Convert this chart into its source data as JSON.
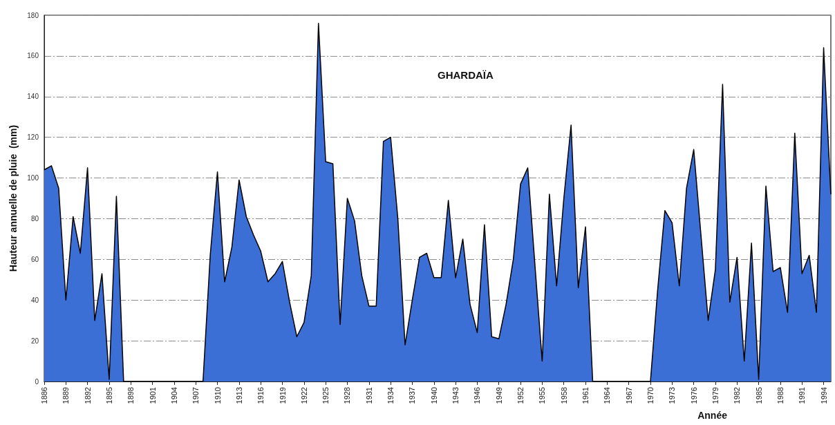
{
  "chart_data": {
    "type": "area",
    "title": "GHARDAÏA",
    "xlabel": "Année",
    "ylabel": "Hauteur annuelle de pluie  (mm)",
    "x": [
      1886,
      1887,
      1888,
      1889,
      1890,
      1891,
      1892,
      1893,
      1894,
      1895,
      1896,
      1897,
      1898,
      1899,
      1900,
      1901,
      1902,
      1903,
      1904,
      1905,
      1906,
      1907,
      1908,
      1909,
      1910,
      1911,
      1912,
      1913,
      1914,
      1915,
      1916,
      1917,
      1918,
      1919,
      1920,
      1921,
      1922,
      1923,
      1924,
      1925,
      1926,
      1927,
      1928,
      1929,
      1930,
      1931,
      1932,
      1933,
      1934,
      1935,
      1936,
      1937,
      1938,
      1939,
      1940,
      1941,
      1942,
      1943,
      1944,
      1945,
      1946,
      1947,
      1948,
      1949,
      1950,
      1951,
      1952,
      1953,
      1954,
      1955,
      1956,
      1957,
      1958,
      1959,
      1960,
      1961,
      1962,
      1963,
      1964,
      1965,
      1966,
      1967,
      1968,
      1969,
      1970,
      1971,
      1972,
      1973,
      1974,
      1975,
      1976,
      1977,
      1978,
      1979,
      1980,
      1981,
      1982,
      1983,
      1984,
      1985,
      1986,
      1987,
      1988,
      1989,
      1990,
      1991,
      1992,
      1993,
      1994,
      1995
    ],
    "series": [
      {
        "color": "#3b6fd6",
        "values": [
          104,
          106,
          95,
          40,
          81,
          63,
          105,
          30,
          53,
          1,
          91,
          0,
          0,
          0,
          0,
          0,
          0,
          0,
          0,
          0,
          0,
          0,
          0,
          62,
          103,
          49,
          66,
          99,
          81,
          72,
          64,
          49,
          53,
          59,
          39,
          22,
          29,
          52,
          176,
          108,
          107,
          28,
          90,
          79,
          52,
          37,
          37,
          118,
          120,
          80,
          18,
          40,
          61,
          63,
          51,
          51,
          89,
          51,
          70,
          38,
          24,
          77,
          22,
          21,
          38,
          60,
          97,
          105,
          57,
          10,
          92,
          47,
          90,
          126,
          46,
          76,
          0,
          0,
          0,
          0,
          0,
          0,
          0,
          0,
          0,
          45,
          84,
          78,
          47,
          95,
          114,
          72,
          30,
          55,
          146,
          39,
          61,
          10,
          68,
          1,
          96,
          54,
          56,
          34,
          122,
          53,
          62,
          34,
          164,
          92
        ]
      }
    ],
    "xlim": [
      1886,
      1995
    ],
    "xticks": [
      1886,
      1889,
      1892,
      1895,
      1898,
      1901,
      1904,
      1907,
      1910,
      1913,
      1916,
      1919,
      1922,
      1925,
      1928,
      1931,
      1934,
      1937,
      1940,
      1943,
      1946,
      1949,
      1952,
      1955,
      1958,
      1961,
      1964,
      1967,
      1970,
      1973,
      1976,
      1979,
      1982,
      1985,
      1988,
      1991,
      1994
    ],
    "ylim": [
      0,
      180
    ],
    "yticks": [
      0,
      20,
      40,
      60,
      80,
      100,
      120,
      140,
      160,
      180
    ],
    "grid": "y",
    "marker": "none",
    "line_style": "solid",
    "legend": false
  }
}
